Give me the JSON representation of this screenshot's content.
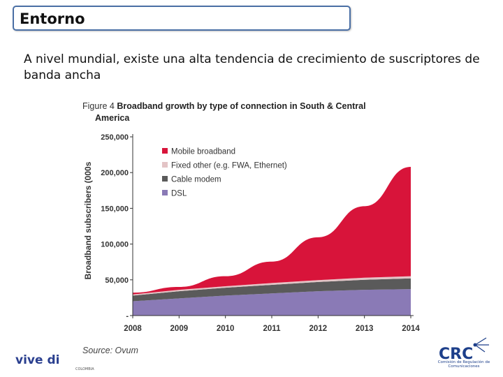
{
  "slide": {
    "title": "Entorno",
    "intro": "A nivel mundial, existe una alta tendencia de crecimiento de suscriptores de banda ancha"
  },
  "logos": {
    "left_main": "vive di",
    "left_small": "COLOMBIA",
    "right_main": "CRC",
    "right_small": "Comisión de Regulación de Comunicaciones"
  },
  "colors": {
    "mobile": "#d8143a",
    "fixed_other": "#e3c4c6",
    "cable": "#5a5a5a",
    "dsl": "#8a7ab6",
    "title_border": "#4a6fa5"
  },
  "chart_data": {
    "type": "area",
    "stacked": true,
    "figure_label": "Figure 4",
    "title": "Broadband growth by type of connection in South & Central America",
    "ylabel": "Broadband subscribers (000s",
    "xlabel": "",
    "source": "Source: Ovum",
    "x": [
      2008,
      2009,
      2010,
      2011,
      2012,
      2013,
      2014
    ],
    "xtick_labels": [
      "2008",
      "2009",
      "2010",
      "2011",
      "2012",
      "2013",
      "2014"
    ],
    "ylim": [
      0,
      250000
    ],
    "ytick_values": [
      0,
      50000,
      100000,
      150000,
      200000,
      250000
    ],
    "ytick_labels": [
      "-",
      "50,000",
      "100,000",
      "150,000",
      "200,000",
      "250,000"
    ],
    "legend_position": "top-left",
    "series": [
      {
        "name": "DSL",
        "key": "dsl",
        "values": [
          20000,
          24000,
          28000,
          31000,
          34000,
          36000,
          37000
        ]
      },
      {
        "name": "Cable modem",
        "key": "cable",
        "values": [
          8000,
          10000,
          11000,
          12000,
          13000,
          14000,
          15000
        ]
      },
      {
        "name": "Fixed other (e.g. FWA, Ethernet)",
        "key": "fixed_other",
        "values": [
          1500,
          2000,
          2000,
          2500,
          2500,
          3000,
          3000
        ]
      },
      {
        "name": "Mobile broadband",
        "key": "mobile",
        "values": [
          2500,
          4000,
          14000,
          30000,
          60000,
          100000,
          153000
        ]
      }
    ],
    "legend_order": [
      "mobile",
      "fixed_other",
      "cable",
      "dsl"
    ]
  }
}
